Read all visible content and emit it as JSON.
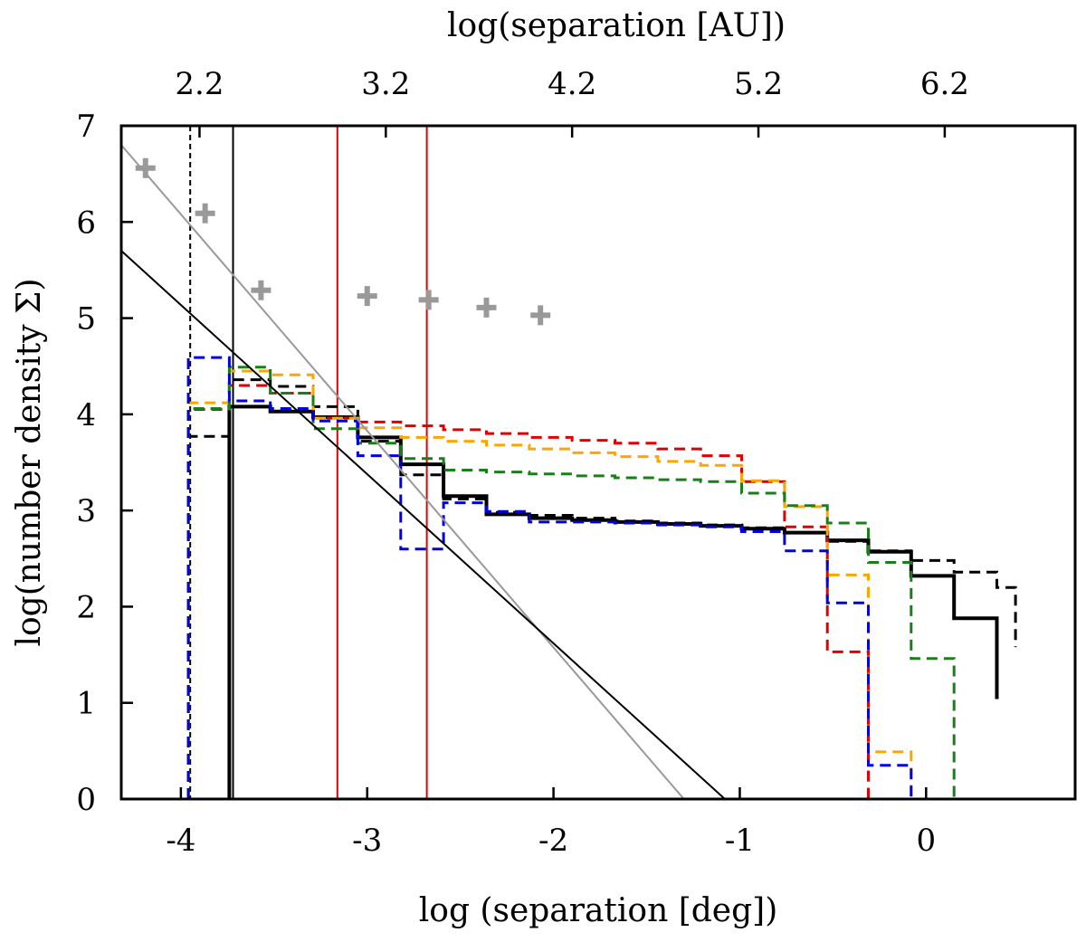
{
  "chart_data": {
    "type": "line",
    "title": "",
    "xlabel": "log (separation [deg])",
    "ylabel": "log(number density Σ)",
    "x2label": "log(separation [AU])",
    "xlim": [
      -4.32,
      0.8
    ],
    "ylim": [
      0,
      7
    ],
    "x_ticks": [
      -4,
      -3,
      -2,
      -1,
      0
    ],
    "x_tick_labels": [
      "-4",
      "-3",
      "-2",
      "-1",
      "0"
    ],
    "y_ticks": [
      0,
      1,
      2,
      3,
      4,
      5,
      6,
      7
    ],
    "y_tick_labels": [
      "0",
      "1",
      "2",
      "3",
      "4",
      "5",
      "6",
      "7"
    ],
    "x2_ticks": [
      -3.9,
      -2.9,
      -1.9,
      -0.9,
      0.1
    ],
    "x2_tick_labels": [
      "2.2",
      "3.2",
      "4.2",
      "5.2",
      "6.2"
    ],
    "grid": false,
    "vlines": [
      {
        "x": -3.95,
        "color": "#000000",
        "style": "dashed",
        "width": 2
      },
      {
        "x": -3.72,
        "color": "#000000",
        "style": "solid",
        "width": 2
      },
      {
        "x": -3.16,
        "color": "#e00000",
        "style": "solid",
        "width": 2
      },
      {
        "x": -2.68,
        "color": "#e00000",
        "style": "solid",
        "width": 2
      }
    ],
    "fit_lines": [
      {
        "name": "gray power law",
        "color": "#999999",
        "x": [
          -4.32,
          -1.3
        ],
        "y": [
          6.8,
          0
        ]
      },
      {
        "name": "black power law",
        "color": "#000000",
        "x": [
          -4.32,
          -1.08
        ],
        "y": [
          5.7,
          0
        ]
      }
    ],
    "points": {
      "name": "plus markers",
      "color": "#999999",
      "x": [
        -4.19,
        -3.87,
        -3.57,
        -3.0,
        -2.67,
        -2.36,
        -2.07
      ],
      "y": [
        6.56,
        6.09,
        5.29,
        5.23,
        5.19,
        5.11,
        5.03
      ]
    },
    "series": [
      {
        "name": "black solid",
        "color": "#000000",
        "style": "solid",
        "width": 4,
        "edges": [
          -3.74,
          -3.52,
          -3.29,
          -3.05,
          -2.82,
          -2.59,
          -2.36,
          -2.13,
          -1.9,
          -1.67,
          -1.44,
          -1.21,
          -0.99,
          -0.76,
          -0.53,
          -0.31,
          -0.08,
          0.15,
          0.38
        ],
        "values": [
          4.08,
          4.03,
          3.97,
          3.76,
          3.48,
          3.15,
          2.96,
          2.92,
          2.9,
          2.88,
          2.86,
          2.84,
          2.81,
          2.77,
          2.69,
          2.57,
          2.32,
          1.88,
          1.04
        ]
      },
      {
        "name": "black dashed",
        "color": "#000000",
        "style": "dashed",
        "width": 3,
        "edges": [
          -3.96,
          -3.74,
          -3.52,
          -3.29,
          -3.05,
          -2.82,
          -2.59,
          -2.36,
          -2.13,
          -1.9,
          -1.67,
          -1.44,
          -1.21,
          -0.99,
          -0.76,
          -0.53,
          -0.31,
          -0.08,
          0.15,
          0.38,
          0.48
        ],
        "values": [
          3.77,
          4.36,
          4.29,
          4.08,
          3.72,
          3.37,
          3.12,
          2.98,
          2.95,
          2.92,
          2.89,
          2.87,
          2.85,
          2.82,
          2.77,
          2.68,
          2.58,
          2.48,
          2.36,
          2.2,
          1.58
        ]
      },
      {
        "name": "red dashed",
        "color": "#e00000",
        "style": "dashed",
        "width": 3,
        "edges": [
          -3.96,
          -3.74,
          -3.52,
          -3.29,
          -3.05,
          -2.82,
          -2.59,
          -2.36,
          -2.13,
          -1.9,
          -1.67,
          -1.44,
          -1.21,
          -0.99,
          -0.76,
          -0.53,
          -0.31
        ],
        "values": [
          4.05,
          4.3,
          4.22,
          3.96,
          3.92,
          3.88,
          3.84,
          3.8,
          3.76,
          3.73,
          3.7,
          3.64,
          3.57,
          3.3,
          2.83,
          1.53,
          0.0
        ]
      },
      {
        "name": "orange dashed",
        "color": "#ffa500",
        "style": "dashed",
        "width": 3,
        "edges": [
          -3.96,
          -3.74,
          -3.52,
          -3.29,
          -3.05,
          -2.82,
          -2.59,
          -2.36,
          -2.13,
          -1.9,
          -1.67,
          -1.44,
          -1.21,
          -0.99,
          -0.76,
          -0.53,
          -0.31,
          -0.08
        ],
        "values": [
          4.12,
          4.45,
          4.41,
          3.96,
          3.86,
          3.76,
          3.72,
          3.68,
          3.64,
          3.6,
          3.56,
          3.51,
          3.47,
          3.31,
          3.04,
          2.33,
          0.49,
          0.0
        ]
      },
      {
        "name": "green dashed",
        "color": "#1a7f1a",
        "style": "dashed",
        "width": 3,
        "edges": [
          -3.96,
          -3.74,
          -3.52,
          -3.29,
          -3.05,
          -2.82,
          -2.59,
          -2.36,
          -2.13,
          -1.9,
          -1.67,
          -1.44,
          -1.21,
          -0.99,
          -0.76,
          -0.53,
          -0.31,
          -0.08,
          0.15
        ],
        "values": [
          4.06,
          4.49,
          4.22,
          3.85,
          3.7,
          3.54,
          3.42,
          3.4,
          3.38,
          3.36,
          3.34,
          3.32,
          3.3,
          3.18,
          3.05,
          2.87,
          2.46,
          1.46,
          0.0
        ]
      },
      {
        "name": "blue dashed",
        "color": "#0000e0",
        "style": "dashed",
        "width": 3,
        "edges": [
          -3.96,
          -3.74,
          -3.52,
          -3.29,
          -3.05,
          -2.82,
          -2.59,
          -2.36,
          -2.13,
          -1.9,
          -1.67,
          -1.44,
          -1.21,
          -0.99,
          -0.76,
          -0.53,
          -0.31,
          -0.08
        ],
        "values": [
          4.59,
          4.14,
          4.06,
          3.93,
          3.57,
          2.6,
          3.08,
          2.99,
          2.88,
          2.88,
          2.87,
          2.85,
          2.83,
          2.78,
          2.58,
          2.04,
          0.35,
          0.0
        ]
      }
    ]
  }
}
